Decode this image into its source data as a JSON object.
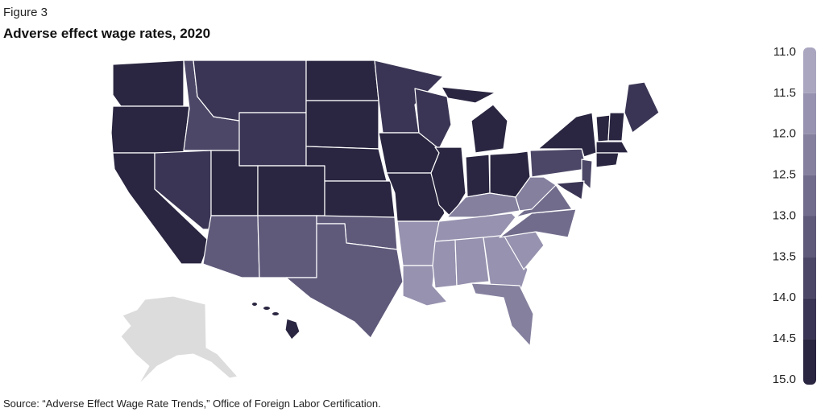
{
  "figure_label": "Figure 3",
  "title": "Adverse effect wage rates, 2020",
  "source": "Source: “Adverse Effect Wage Rate Trends,” Office of Foreign Labor Certification.",
  "legend": {
    "lim": [
      11,
      15
    ],
    "ticks": [
      {
        "value": 11,
        "label": "11.0"
      },
      {
        "value": 11.5,
        "label": "11.5"
      },
      {
        "value": 12,
        "label": "12.0"
      },
      {
        "value": 12.5,
        "label": "12.5"
      },
      {
        "value": 13,
        "label": "13.0"
      },
      {
        "value": 13.5,
        "label": "13.5"
      },
      {
        "value": 14,
        "label": "14.0"
      },
      {
        "value": 14.5,
        "label": "14.5"
      },
      {
        "value": 15,
        "label": "15.0"
      }
    ],
    "colors": [
      "#aaa6c0",
      "#9792af",
      "#84809e",
      "#726c8c",
      "#5f597a",
      "#4d4767",
      "#3b3555",
      "#2a2540"
    ]
  },
  "regions": [
    14.8,
    14.8,
    14.8,
    13.8,
    14.2,
    14.0,
    14.0,
    14.5,
    13.1,
    14.5,
    13.1,
    14.9,
    14.9,
    14.9,
    14.9,
    13.4,
    13.1,
    14.4,
    14.9,
    14.9,
    11.8,
    11.7,
    14.4,
    14.9,
    14.6,
    14.6,
    14.9,
    14.9,
    12.0,
    11.9,
    11.7,
    11.7,
    11.8,
    12.0,
    11.9,
    12.8,
    12.7,
    12.1,
    13.6,
    14.7,
    14.0,
    14.8,
    14.5,
    14.8,
    14.8,
    13.5,
    14.3,
    14.9
  ]
}
